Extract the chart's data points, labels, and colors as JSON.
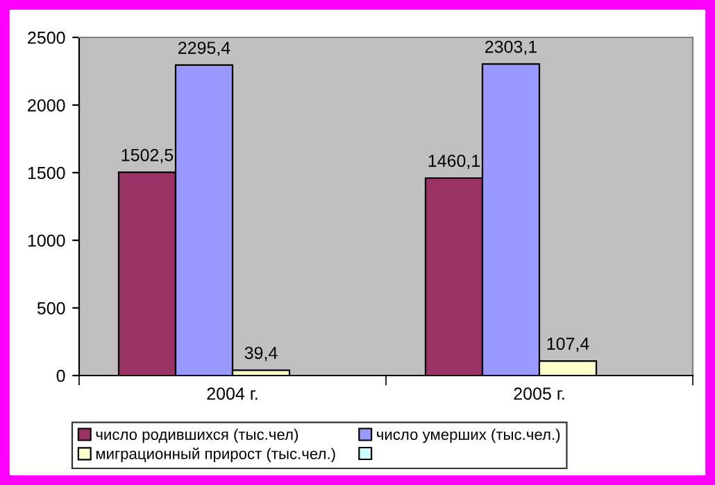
{
  "chart_data": {
    "type": "bar",
    "categories": [
      "2004 г.",
      "2005 г."
    ],
    "series": [
      {
        "name": "число родившихся (тыс.чел)",
        "color": "#993366",
        "values": [
          1502.5,
          1460.1
        ],
        "value_labels": [
          "1502,5",
          "1460,1"
        ]
      },
      {
        "name": "число умерших (тыс.чел.)",
        "color": "#9999ff",
        "values": [
          2295.4,
          2303.1
        ],
        "value_labels": [
          "2295,4",
          "2303,1"
        ]
      },
      {
        "name": "миграционный прирост (тыс.чел.)",
        "color": "#ffffcc",
        "values": [
          39.4,
          107.4
        ],
        "value_labels": [
          "39,4",
          "107,4"
        ]
      },
      {
        "color": "#ccffff",
        "values": [
          null,
          null
        ]
      }
    ],
    "ylim": [
      0,
      2500
    ],
    "yticks": [
      0,
      500,
      1000,
      1500,
      2000,
      2500
    ],
    "grid": false,
    "legend": "bottom"
  }
}
